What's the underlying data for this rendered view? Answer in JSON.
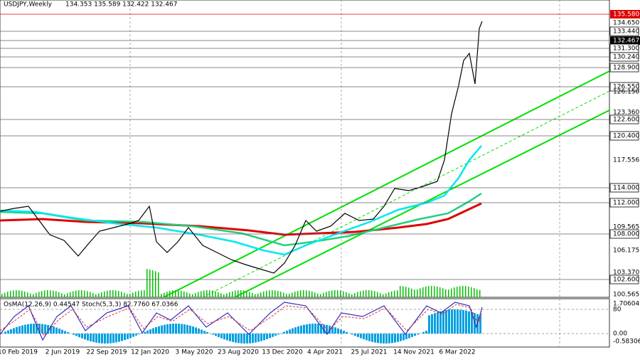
{
  "header": {
    "symbol": "USDJPY,Weekly",
    "ohlc": "134.353 135.589 132.422 132.467"
  },
  "indicator_label": "OsMA(12,26,9) 0.44547  Stoch(5,3,3) 82.7760 67.0366",
  "price_axis": [
    "135.580",
    "134.650",
    "133.440",
    "132.467",
    "131.300",
    "130.240",
    "128.900",
    "126.550",
    "126.150",
    "123.360",
    "122.600",
    "120.400",
    "117.556",
    "114.000",
    "112.000",
    "109.565",
    "108.000",
    "106.175",
    "103.370",
    "102.600",
    "100.565"
  ],
  "indicator_axis": [
    "1.70604",
    "80",
    "0.00",
    "-0.58306"
  ],
  "time_axis": [
    "10 Feb 2019",
    "2 Jun 2019",
    "22 Sep 2019",
    "12 Jan 2020",
    "3 May 2020",
    "23 Aug 2020",
    "13 Dec 2020",
    "4 Apr 2021",
    "25 Jul 2021",
    "14 Nov 2021",
    "6 Mar 2022"
  ]
}
